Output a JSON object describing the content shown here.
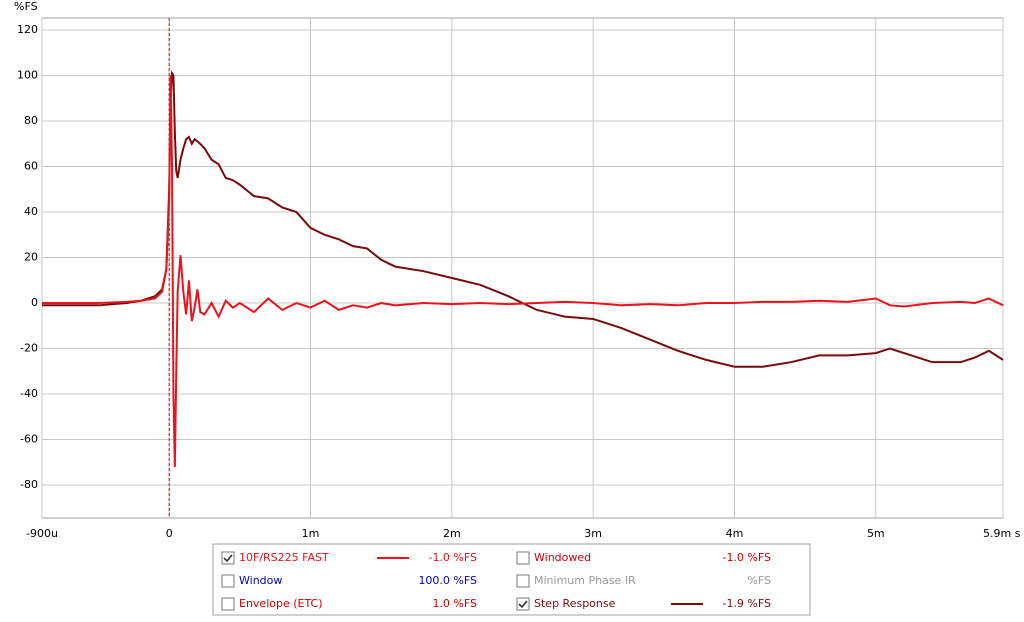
{
  "chart_data": {
    "type": "line",
    "y_label": "%FS",
    "x": [
      -0.9,
      -0.5,
      -0.3,
      -0.2,
      -0.1,
      -0.05,
      -0.02,
      0,
      0.01,
      0.02,
      0.03,
      0.04,
      0.05,
      0.06,
      0.08,
      0.1,
      0.12,
      0.14,
      0.16,
      0.18,
      0.2,
      0.22,
      0.25,
      0.3,
      0.35,
      0.4,
      0.45,
      0.5,
      0.6,
      0.7,
      0.8,
      0.9,
      1.0,
      1.1,
      1.2,
      1.3,
      1.4,
      1.5,
      1.6,
      1.8,
      2.0,
      2.2,
      2.4,
      2.6,
      2.8,
      3.0,
      3.2,
      3.4,
      3.6,
      3.8,
      4.0,
      4.2,
      4.4,
      4.6,
      4.8,
      5.0,
      5.1,
      5.2,
      5.4,
      5.6,
      5.7,
      5.8,
      5.9
    ],
    "series": [
      {
        "name": "10F/RS225 FAST",
        "color": "#e8141c",
        "checked": true,
        "readout": "-1.0 %FS",
        "values": [
          0,
          0,
          0.5,
          1,
          2,
          5,
          15,
          45,
          100,
          60,
          -40,
          -72,
          -30,
          5,
          21,
          5,
          -5,
          10,
          -8,
          -2,
          6,
          -4,
          -5,
          0,
          -6,
          1,
          -2,
          0,
          -4,
          2,
          -3,
          0,
          -2,
          1,
          -3,
          -1,
          -2,
          0,
          -1,
          0,
          -0.5,
          0,
          -0.5,
          0,
          0.5,
          0,
          -1,
          -0.5,
          -1,
          0,
          0,
          0.5,
          0.5,
          1,
          0.5,
          2,
          -1,
          -1.5,
          0,
          0.5,
          0,
          2,
          -1
        ]
      },
      {
        "name": "Step Response",
        "color": "#7a0a0a",
        "checked": true,
        "readout": "-1.9 %FS",
        "values": [
          -1,
          -1,
          0,
          1,
          3,
          6,
          15,
          50,
          90,
          101,
          100,
          75,
          58,
          55,
          63,
          68,
          72,
          73,
          70,
          72,
          71,
          70,
          68,
          63,
          61,
          55,
          54,
          52,
          47,
          46,
          42,
          40,
          33,
          30,
          28,
          25,
          24,
          19,
          16,
          14,
          11,
          8,
          3,
          -3,
          -6,
          -7,
          -11,
          -16,
          -21,
          -25,
          -28,
          -28,
          -26,
          -23,
          -23,
          -22,
          -20,
          -22,
          -26,
          -26,
          -24,
          -21,
          -25
        ]
      }
    ],
    "legend_items": [
      {
        "name": "Windowed",
        "color": "#cc0000",
        "checked": false,
        "readout": "-1.0 %FS"
      },
      {
        "name": "Window",
        "color": "#0000cc",
        "checked": false,
        "readout": "100.0 %FS"
      },
      {
        "name": "Minimum Phase IR",
        "color": "#9a9a9a",
        "checked": false,
        "readout": "%FS"
      },
      {
        "name": "Envelope (ETC)",
        "color": "#cc0000",
        "checked": false,
        "readout": "1.0 %FS"
      }
    ],
    "marker_x": 0,
    "xlim": [
      -0.9,
      5.9
    ],
    "ylim": [
      -94.5,
      125.3
    ],
    "xticks": [
      {
        "value": -0.9,
        "label": "-900u"
      },
      0,
      {
        "value": 1,
        "label": "1m"
      },
      {
        "value": 2,
        "label": "2m"
      },
      {
        "value": 3,
        "label": "3m"
      },
      {
        "value": 4,
        "label": "4m"
      },
      {
        "value": 5,
        "label": "5m"
      },
      {
        "value": 5.9,
        "label": "5.9m s"
      }
    ],
    "yticks": [
      -80,
      -60,
      -40,
      -20,
      0,
      20,
      40,
      60,
      80,
      100,
      120
    ],
    "grid": true
  }
}
